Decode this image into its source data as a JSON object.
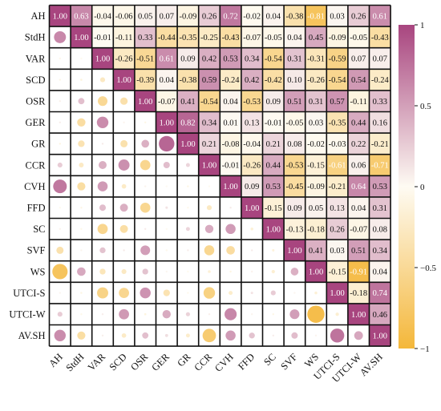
{
  "chart_data": {
    "type": "heatmap",
    "labels": [
      "AH",
      "StdH",
      "VAR",
      "SCD",
      "OSR",
      "GER",
      "GR",
      "CCR",
      "CVH",
      "FFD",
      "SC",
      "SVF",
      "WS",
      "UTCI-S",
      "UTCI-W",
      "AV.SH"
    ],
    "matrix": [
      [
        1.0,
        0.63,
        -0.04,
        -0.06,
        0.05,
        0.07,
        -0.09,
        0.26,
        0.72,
        -0.02,
        0.04,
        -0.38,
        -0.81,
        0.03,
        0.26,
        0.61
      ],
      [
        0.63,
        1.0,
        -0.01,
        -0.11,
        0.33,
        -0.44,
        -0.35,
        -0.25,
        -0.43,
        -0.07,
        -0.05,
        0.04,
        0.45,
        -0.09,
        -0.05,
        -0.43
      ],
      [
        -0.04,
        -0.01,
        1.0,
        -0.26,
        -0.51,
        0.61,
        0.09,
        0.42,
        0.53,
        0.34,
        -0.54,
        0.31,
        -0.31,
        -0.59,
        0.07,
        0.07
      ],
      [
        -0.06,
        -0.11,
        -0.26,
        1.0,
        -0.39,
        0.04,
        -0.38,
        0.59,
        -0.24,
        0.42,
        -0.42,
        0.1,
        -0.26,
        -0.54,
        0.54,
        -0.24
      ],
      [
        0.05,
        0.33,
        -0.51,
        -0.39,
        1.0,
        -0.07,
        0.41,
        -0.54,
        0.04,
        -0.53,
        0.09,
        0.51,
        0.31,
        0.57,
        -0.11,
        0.33
      ],
      [
        0.07,
        -0.44,
        0.61,
        0.04,
        -0.07,
        1.0,
        0.82,
        0.34,
        0.01,
        0.13,
        -0.01,
        -0.05,
        0.03,
        -0.35,
        0.44,
        0.16
      ],
      [
        -0.09,
        -0.35,
        0.09,
        -0.38,
        0.41,
        0.82,
        1.0,
        0.21,
        -0.08,
        -0.04,
        0.21,
        0.08,
        -0.02,
        -0.03,
        0.22,
        -0.21
      ],
      [
        0.26,
        -0.25,
        0.42,
        0.59,
        -0.54,
        0.34,
        0.21,
        1.0,
        -0.01,
        -0.26,
        0.44,
        -0.53,
        -0.15,
        -0.61,
        0.06,
        -0.71
      ],
      [
        0.72,
        -0.43,
        0.53,
        -0.24,
        0.04,
        0.01,
        -0.08,
        -0.01,
        1.0,
        0.09,
        0.53,
        -0.45,
        -0.09,
        -0.21,
        0.64,
        0.53
      ],
      [
        -0.02,
        -0.07,
        0.34,
        0.42,
        -0.53,
        0.13,
        -0.04,
        -0.26,
        0.09,
        1.0,
        -0.15,
        0.09,
        0.05,
        0.13,
        0.04,
        0.31
      ],
      [
        0.04,
        -0.05,
        -0.54,
        -0.42,
        0.09,
        -0.01,
        0.21,
        0.44,
        0.53,
        -0.15,
        1.0,
        -0.13,
        -0.18,
        0.26,
        -0.07,
        0.08
      ],
      [
        -0.38,
        0.04,
        0.31,
        0.1,
        0.51,
        -0.05,
        0.08,
        -0.53,
        -0.45,
        0.09,
        -0.13,
        1.0,
        0.41,
        0.03,
        0.51,
        0.34
      ],
      [
        -0.81,
        0.45,
        -0.31,
        -0.26,
        0.31,
        0.03,
        -0.02,
        -0.15,
        -0.09,
        0.05,
        -0.18,
        0.41,
        1.0,
        -0.15,
        -0.91,
        0.04
      ],
      [
        0.03,
        -0.09,
        -0.59,
        -0.54,
        0.57,
        -0.35,
        -0.03,
        -0.61,
        -0.21,
        0.13,
        0.26,
        0.03,
        -0.15,
        1.0,
        -0.18,
        0.74
      ],
      [
        0.26,
        -0.05,
        0.07,
        0.54,
        -0.11,
        0.44,
        0.22,
        0.06,
        0.64,
        0.04,
        -0.07,
        0.51,
        -0.91,
        -0.18,
        1.0,
        0.46
      ],
      [
        0.61,
        -0.43,
        0.07,
        -0.24,
        0.33,
        0.16,
        -0.21,
        -0.71,
        0.53,
        0.31,
        0.08,
        0.34,
        0.04,
        0.74,
        0.46,
        1.0
      ]
    ],
    "upper_display": "numbers",
    "lower_display": "circles",
    "colorbar": {
      "range": [
        -1,
        1
      ],
      "ticks": [
        1,
        0.5,
        0,
        -0.5,
        -1
      ],
      "tick_labels": [
        "1",
        "0.5",
        "0",
        "−0.5",
        "−1"
      ],
      "colors": {
        "positive": "#a8457f",
        "zero": "#fefbf3",
        "negative": "#f4b73a"
      }
    }
  }
}
